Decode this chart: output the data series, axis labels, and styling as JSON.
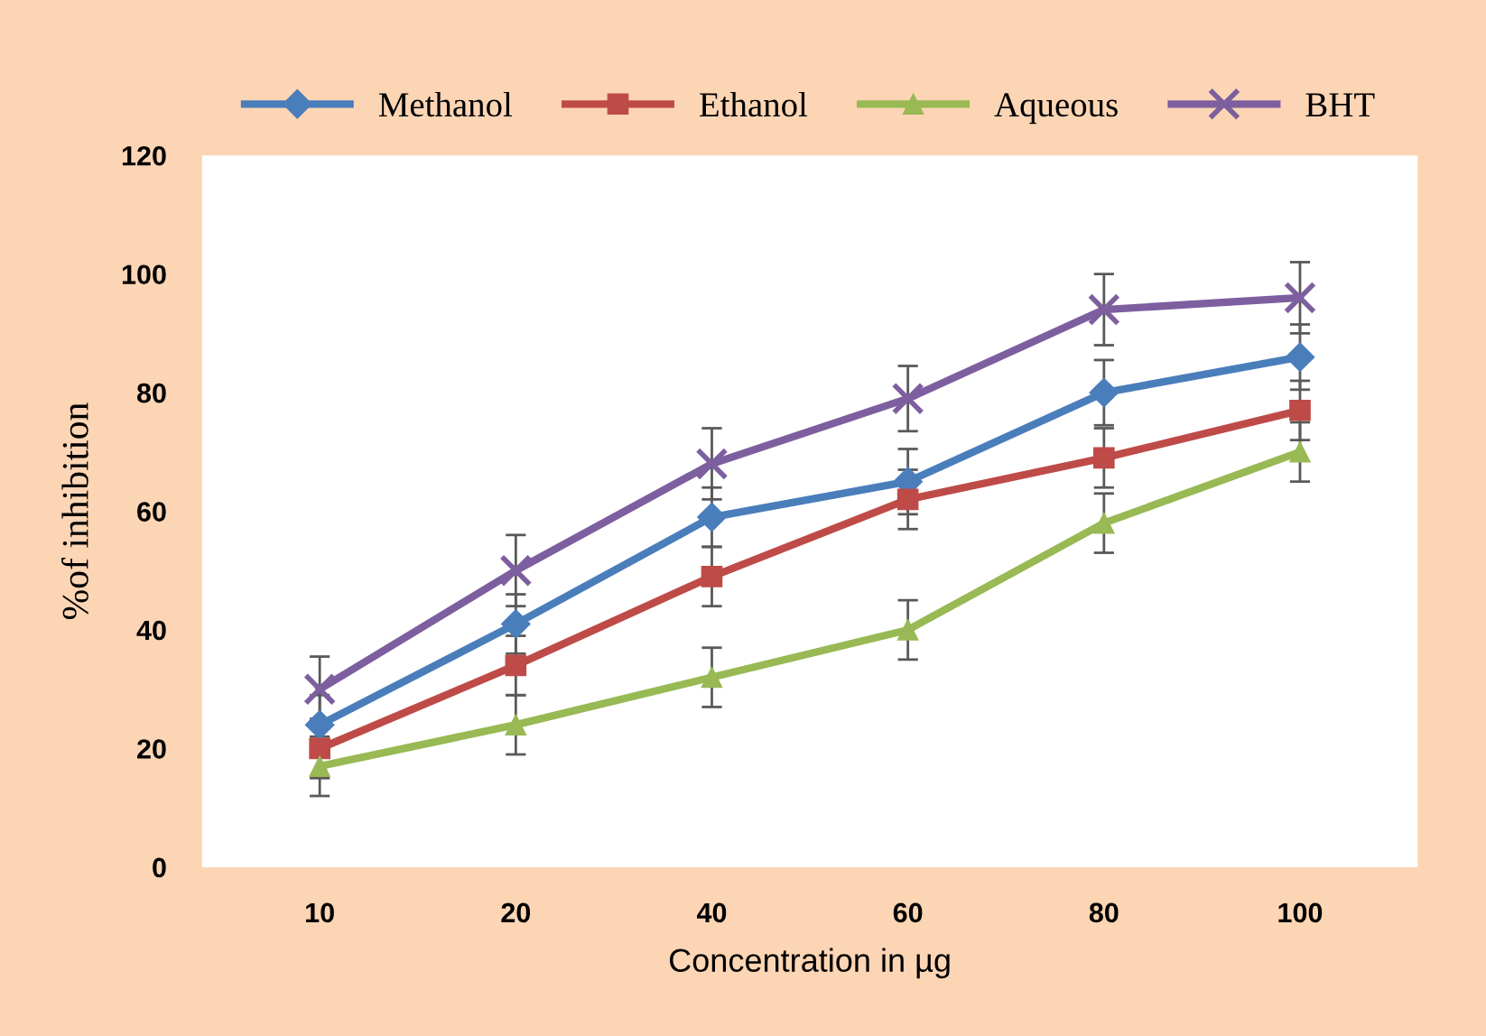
{
  "chart_data": {
    "type": "line",
    "xlabel": "Concentration in µg",
    "ylabel": "%of inhibition",
    "categories": [
      "10",
      "20",
      "40",
      "60",
      "80",
      "100"
    ],
    "ylim": [
      0,
      120
    ],
    "yticks": [
      0,
      20,
      40,
      60,
      80,
      100,
      120
    ],
    "grid": false,
    "legend": "top",
    "line_style": "solid",
    "series": [
      {
        "name": "Methanol",
        "color": "#4a7ebb",
        "marker": "diamond",
        "values": [
          24,
          41,
          59,
          65,
          80,
          86
        ],
        "errors": [
          5,
          5,
          5,
          5.5,
          5.5,
          5.5
        ]
      },
      {
        "name": "Ethanol",
        "color": "#be4b48",
        "marker": "square",
        "values": [
          20,
          34,
          49,
          62,
          69,
          77
        ],
        "errors": [
          5,
          5,
          5,
          5,
          5,
          5
        ]
      },
      {
        "name": "Aqueous",
        "color": "#98b954",
        "marker": "triangle",
        "values": [
          17,
          24,
          32,
          40,
          58,
          70
        ],
        "errors": [
          5,
          5,
          5,
          5,
          5,
          5
        ]
      },
      {
        "name": "BHT",
        "color": "#7d5fa0",
        "marker": "cross",
        "values": [
          30,
          50,
          68,
          79,
          94,
          96
        ],
        "errors": [
          5.5,
          6,
          6,
          5.5,
          6,
          6
        ]
      }
    ]
  }
}
